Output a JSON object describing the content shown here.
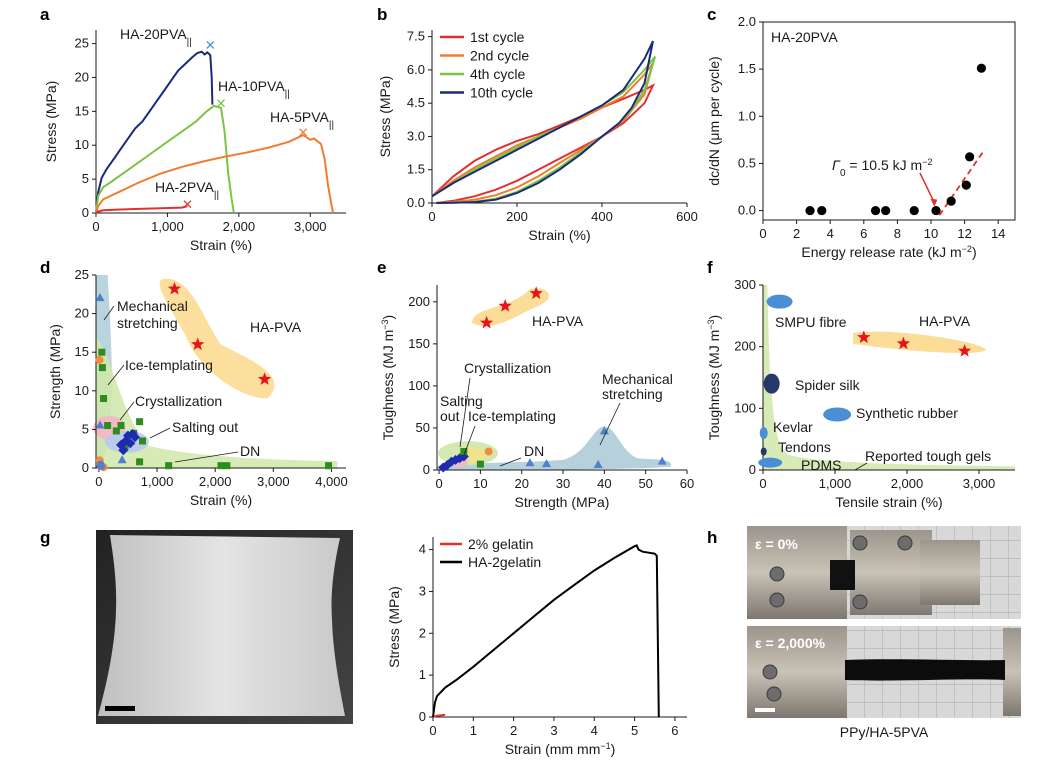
{
  "panel_letters": [
    "a",
    "b",
    "c",
    "d",
    "e",
    "f",
    "g",
    "h"
  ],
  "chart_data": [
    {
      "id": "a",
      "type": "line",
      "xlabel": "Strain (%)",
      "ylabel": "Stress (MPa)",
      "xlim": [
        0,
        3500
      ],
      "ylim": [
        0,
        27
      ],
      "xticks": [
        "0",
        "1,000",
        "2,000",
        "3,000"
      ],
      "xtick_values": [
        0,
        1000,
        2000,
        3000
      ],
      "yticks": [
        "0",
        "5",
        "10",
        "15",
        "20",
        "25"
      ],
      "ytick_values": [
        0,
        5,
        10,
        15,
        20,
        25
      ],
      "series": [
        {
          "name": "HA-20PVA",
          "sub": "||",
          "color": "#1b2a7a",
          "x": [
            0,
            30,
            80,
            150,
            250,
            350,
            450,
            550,
            650,
            750,
            850,
            950,
            1050,
            1150,
            1250,
            1350,
            1420,
            1480,
            1520,
            1560,
            1600,
            1620,
            1630
          ],
          "y": [
            0,
            3,
            5.2,
            6.5,
            8,
            9.5,
            11,
            12.5,
            13.5,
            15,
            16.5,
            18,
            19.5,
            21,
            22,
            23,
            23.6,
            23.8,
            23.4,
            23.7,
            23.3,
            20,
            16
          ],
          "break": [
            1600,
            24.8
          ]
        },
        {
          "name": "HA-10PVA",
          "sub": "||",
          "color": "#7cc443",
          "x": [
            0,
            30,
            100,
            200,
            400,
            600,
            800,
            1000,
            1200,
            1400,
            1550,
            1650,
            1750,
            1800,
            1850,
            1900,
            1930
          ],
          "y": [
            0,
            2.5,
            3.8,
            4.5,
            6,
            7.5,
            9,
            10.5,
            12,
            13.5,
            15,
            15.8,
            15.5,
            12,
            6,
            2,
            0
          ],
          "break": [
            1750,
            16.2
          ]
        },
        {
          "name": "HA-5PVA",
          "sub": "||",
          "color": "#ee7d30",
          "x": [
            0,
            30,
            100,
            300,
            600,
            900,
            1200,
            1500,
            1800,
            2100,
            2400,
            2700,
            2900,
            3000,
            3050,
            3150,
            3200,
            3250,
            3300,
            3320
          ],
          "y": [
            0,
            1,
            2,
            3,
            4.5,
            5.8,
            6.8,
            7.6,
            8.3,
            8.9,
            9.6,
            10.5,
            11.5,
            10.8,
            11,
            10.2,
            8,
            4,
            1,
            0
          ],
          "break": [
            2900,
            11.9
          ]
        },
        {
          "name": "HA-2PVA",
          "sub": "||",
          "color": "#e23030",
          "x": [
            0,
            30,
            100,
            300,
            600,
            900,
            1200,
            1280
          ],
          "y": [
            0,
            0.2,
            0.4,
            0.5,
            0.6,
            0.7,
            0.8,
            1.0
          ],
          "break": [
            1280,
            1.3
          ]
        }
      ]
    },
    {
      "id": "b",
      "type": "line",
      "xlabel": "Strain (%)",
      "ylabel": "Stress (MPa)",
      "xlim": [
        0,
        600
      ],
      "ylim": [
        0,
        7.8
      ],
      "xticks": [
        "0",
        "200",
        "400",
        "600"
      ],
      "xtick_values": [
        0,
        200,
        400,
        600
      ],
      "yticks": [
        "0.0",
        "1.5",
        "3.0",
        "4.5",
        "6.0",
        "7.5"
      ],
      "ytick_values": [
        0,
        1.5,
        3,
        4.5,
        6,
        7.5
      ],
      "legend": "top-left",
      "series": [
        {
          "name": "1st cycle",
          "color": "#e23030",
          "load_x": [
            0,
            50,
            100,
            150,
            200,
            250,
            300,
            350,
            400,
            450,
            500,
            520
          ],
          "load_y": [
            0.3,
            1.2,
            1.9,
            2.4,
            2.8,
            3.1,
            3.5,
            3.9,
            4.3,
            4.7,
            5.1,
            5.3
          ],
          "unload_x": [
            520,
            500,
            450,
            400,
            350,
            300,
            250,
            200,
            150,
            100,
            50,
            10
          ],
          "unload_y": [
            5.3,
            4.5,
            3.6,
            3.0,
            2.5,
            2.0,
            1.5,
            1.0,
            0.6,
            0.3,
            0.1,
            0
          ]
        },
        {
          "name": "2nd cycle",
          "color": "#ee7d30",
          "load_x": [
            0,
            50,
            100,
            150,
            200,
            250,
            300,
            350,
            400,
            450,
            500,
            520
          ],
          "load_y": [
            0.3,
            1.0,
            1.6,
            2.1,
            2.6,
            3.0,
            3.4,
            3.8,
            4.3,
            4.8,
            5.8,
            6.3
          ],
          "unload_x": [
            520,
            500,
            450,
            400,
            350,
            300,
            250,
            200,
            150,
            100,
            50,
            10
          ],
          "unload_y": [
            6.3,
            4.9,
            3.7,
            3.0,
            2.4,
            1.8,
            1.2,
            0.7,
            0.35,
            0.15,
            0.05,
            0
          ]
        },
        {
          "name": "4th cycle",
          "color": "#7cc443",
          "load_x": [
            0,
            50,
            100,
            150,
            200,
            250,
            300,
            350,
            400,
            450,
            500,
            525
          ],
          "load_y": [
            0.3,
            0.9,
            1.5,
            2.0,
            2.5,
            3.0,
            3.4,
            3.9,
            4.4,
            5.0,
            6.0,
            6.6
          ],
          "unload_x": [
            525,
            500,
            470,
            440,
            400,
            350,
            300,
            250,
            200,
            150,
            100,
            50,
            10
          ],
          "unload_y": [
            6.6,
            5.1,
            4.2,
            3.6,
            3.0,
            2.3,
            1.6,
            1.0,
            0.5,
            0.2,
            0.05,
            0.02,
            0
          ]
        },
        {
          "name": "10th cycle",
          "color": "#1b2a7a",
          "load_x": [
            0,
            50,
            100,
            150,
            200,
            250,
            300,
            350,
            400,
            450,
            500,
            520
          ],
          "load_y": [
            0.3,
            0.9,
            1.4,
            1.9,
            2.4,
            2.9,
            3.4,
            3.9,
            4.4,
            5.1,
            6.5,
            7.3
          ],
          "unload_x": [
            520,
            500,
            470,
            440,
            400,
            350,
            300,
            250,
            200,
            150,
            100,
            50,
            10
          ],
          "unload_y": [
            7.3,
            5.4,
            4.3,
            3.6,
            3.0,
            2.2,
            1.5,
            0.9,
            0.45,
            0.15,
            0.04,
            0.01,
            0
          ]
        }
      ]
    },
    {
      "id": "c",
      "type": "scatter",
      "xlabel": "Energy release rate (kJ m",
      "xlabel_sup": "−2",
      "xlabel_end": ")",
      "ylabel": "dc/dN (μm per cycle)",
      "xlim": [
        0,
        15
      ],
      "ylim": [
        -0.1,
        2.0
      ],
      "xticks": [
        "0",
        "2",
        "4",
        "6",
        "8",
        "10",
        "12",
        "14"
      ],
      "xtick_values": [
        0,
        2,
        4,
        6,
        8,
        10,
        12,
        14
      ],
      "yticks": [
        "0.0",
        "0.5",
        "1.0",
        "1.5",
        "2.0"
      ],
      "ytick_values": [
        0,
        0.5,
        1,
        1.5,
        2
      ],
      "title": "HA-20PVA",
      "points_x": [
        2.8,
        3.5,
        6.7,
        7.3,
        9.0,
        10.3,
        11.2,
        12.1,
        12.3,
        13.0
      ],
      "points_y": [
        0,
        0,
        0,
        0,
        0,
        0,
        0.1,
        0.27,
        0.57,
        1.51
      ],
      "fit_x": [
        10.5,
        13.2
      ],
      "fit_y": [
        -0.05,
        0.65
      ],
      "annotation": "Γ",
      "annotation_sub": "0",
      "annotation_rest": " = 10.5 kJ m",
      "annotation_sup": "−2",
      "arrow_to": [
        10.2,
        0.02
      ]
    },
    {
      "id": "d",
      "type": "scatter",
      "xlabel": "Strain (%)",
      "ylabel": "Strength (MPa)",
      "xlim": [
        -50,
        4250
      ],
      "ylim": [
        0,
        25
      ],
      "xticks": [
        "0",
        "1,000",
        "2,000",
        "3,000",
        "4,000"
      ],
      "xtick_values": [
        0,
        1000,
        2000,
        3000,
        4000
      ],
      "yticks": [
        "0",
        "5",
        "10",
        "15",
        "20",
        "25"
      ],
      "ytick_values": [
        0,
        5,
        10,
        15,
        20,
        25
      ],
      "labels": [
        "Mechanical",
        "stretching",
        "Ice-templating",
        "Crystallization",
        "Salting out",
        "DN",
        "HA-PVA"
      ],
      "stars_x": [
        1300,
        1700,
        2850
      ],
      "stars_y": [
        23.2,
        16,
        11.5
      ],
      "tri_x": [
        20,
        20,
        400
      ],
      "tri_y": [
        22,
        5.5,
        1
      ],
      "green_x": [
        50,
        60,
        80,
        150,
        300,
        380,
        450,
        600,
        700,
        750,
        700,
        1200,
        2100,
        2200,
        3950
      ],
      "green_y": [
        15,
        13,
        9,
        5.5,
        4.8,
        5.5,
        2.8,
        4.5,
        6,
        3.5,
        0.8,
        0.3,
        0.3,
        0.3,
        0.3
      ],
      "orange_x": [
        10,
        15,
        20,
        30,
        60,
        80
      ],
      "orange_y": [
        14,
        1,
        0.5,
        0.3,
        0.2,
        0.1
      ],
      "diamond_x": [
        380,
        420,
        460,
        500,
        540,
        580,
        620
      ],
      "diamond_y": [
        3,
        2.3,
        3.5,
        4.2,
        3.2,
        4.4,
        4
      ],
      "blue_x": [
        20,
        30,
        50
      ],
      "blue_y": [
        0.3,
        0.5,
        0.2
      ]
    },
    {
      "id": "e",
      "type": "scatter",
      "xlabel": "Strength (MPa)",
      "ylabel": "Toughness (MJ m",
      "ylabel_sup": "−3",
      "ylabel_end": ")",
      "xlim": [
        -0.5,
        60
      ],
      "ylim": [
        0,
        220
      ],
      "xticks": [
        "0",
        "10",
        "20",
        "30",
        "40",
        "50",
        "60"
      ],
      "xtick_values": [
        0,
        10,
        20,
        30,
        40,
        50,
        60
      ],
      "yticks": [
        "0",
        "50",
        "100",
        "150",
        "200"
      ],
      "ytick_values": [
        0,
        50,
        100,
        150,
        200
      ],
      "labels": [
        "HA-PVA",
        "Crystallization",
        "Mechanical",
        "stretching",
        "Salting",
        "out",
        "Ice-templating",
        "DN"
      ],
      "stars_x": [
        11.5,
        16,
        23.5
      ],
      "stars_y": [
        175,
        195,
        210
      ],
      "tri_x": [
        38.5,
        40,
        54,
        22,
        26
      ],
      "tri_y": [
        6,
        46,
        10,
        8,
        7
      ],
      "green_x": [
        6,
        10
      ],
      "green_y": [
        22,
        7
      ],
      "orange_x": [
        12
      ],
      "orange_y": [
        22
      ],
      "diamond_x": [
        1,
        2,
        3,
        4,
        5,
        6
      ],
      "diamond_y": [
        3,
        6,
        10,
        12,
        14,
        16
      ]
    },
    {
      "id": "f",
      "type": "scatter",
      "xlabel": "Tensile strain (%)",
      "ylabel": "Toughness (MJ m",
      "ylabel_sup": "−3",
      "ylabel_end": ")",
      "xlim": [
        0,
        3500
      ],
      "ylim": [
        0,
        300
      ],
      "xticks": [
        "0",
        "1,000",
        "2,000",
        "3,000"
      ],
      "xtick_values": [
        0,
        1000,
        2000,
        3000
      ],
      "yticks": [
        "0",
        "100",
        "200",
        "300"
      ],
      "ytick_values": [
        0,
        100,
        200,
        300
      ],
      "labels": [
        "SMPU fibre",
        "HA-PVA",
        "Spider silk",
        "Synthetic rubber",
        "Kevlar",
        "Tendons",
        "PDMS",
        "Reported tough gels"
      ],
      "stars_x": [
        1400,
        1950,
        2800
      ],
      "stars_y": [
        215,
        205,
        193
      ],
      "colors": {
        "smpu": "#4a8fd6",
        "spider": "#25386a",
        "rubber": "#4a8fd6",
        "kevlar": "#4a8fd6",
        "tendon": "#25386a",
        "pdms": "#4a8fd6"
      }
    },
    {
      "id": "g",
      "type": "line",
      "xlabel": "Strain (mm mm",
      "xlabel_sup": "−1",
      "xlabel_end": ")",
      "ylabel": "Stress (MPa)",
      "xlim": [
        0,
        6.3
      ],
      "ylim": [
        0,
        4.3
      ],
      "xticks": [
        "0",
        "1",
        "2",
        "3",
        "4",
        "5",
        "6"
      ],
      "xtick_values": [
        0,
        1,
        2,
        3,
        4,
        5,
        6
      ],
      "yticks": [
        "0",
        "1",
        "2",
        "3",
        "4"
      ],
      "ytick_values": [
        0,
        1,
        2,
        3,
        4
      ],
      "legend": "top-left",
      "series": [
        {
          "name": "2% gelatin",
          "color": "#e23030",
          "x": [
            0,
            0.1,
            0.2,
            0.3
          ],
          "y": [
            0,
            0.03,
            0.04,
            0.05
          ]
        },
        {
          "name": "HA-2gelatin",
          "color": "#000000",
          "x": [
            0,
            0.05,
            0.1,
            0.3,
            0.6,
            1,
            1.5,
            2,
            2.5,
            3,
            3.5,
            4,
            4.5,
            5,
            5.05,
            5.1,
            5.2,
            5.5,
            5.55,
            5.6
          ],
          "y": [
            0,
            0.35,
            0.5,
            0.7,
            0.9,
            1.2,
            1.6,
            2.0,
            2.4,
            2.8,
            3.15,
            3.5,
            3.8,
            4.08,
            4.1,
            4.0,
            3.95,
            3.9,
            3.85,
            0
          ]
        }
      ]
    }
  ],
  "photo_h": {
    "label_top": "ε = 0%",
    "label_bottom": "ε = 2,000%",
    "caption": "PPy/HA-5PVA"
  }
}
